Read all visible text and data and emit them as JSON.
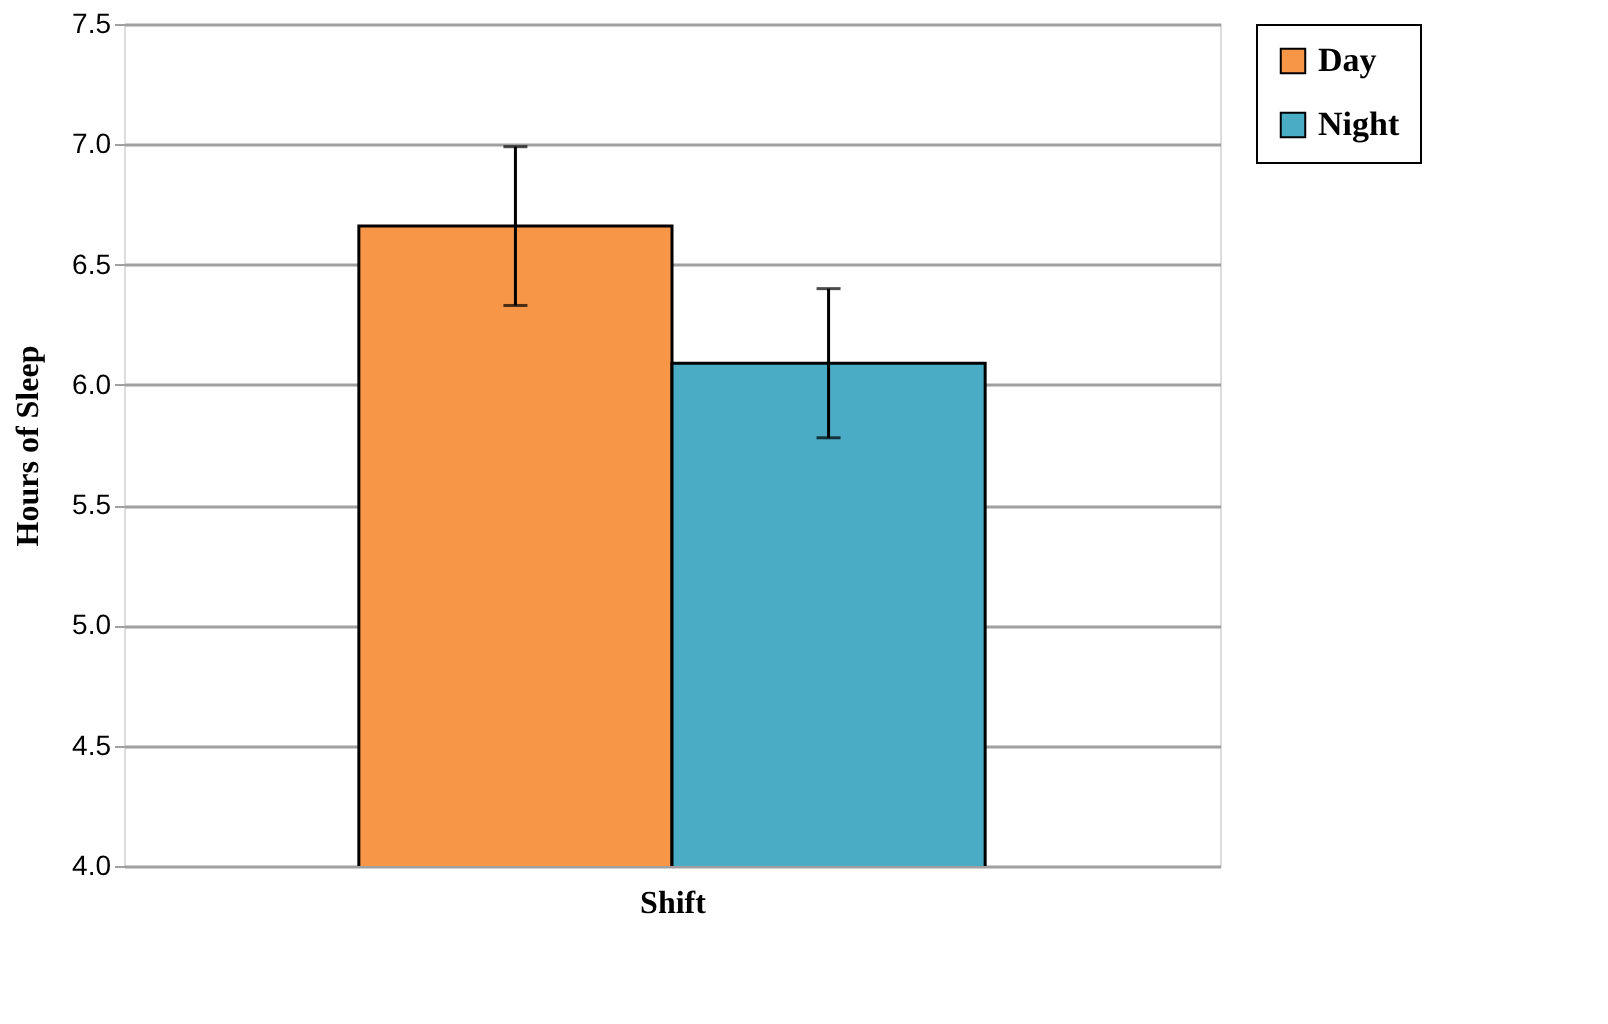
{
  "chart_data": {
    "type": "bar",
    "categories": [
      null
    ],
    "xlabel": "Shift",
    "ylabel": "Hours of Sleep",
    "series": [
      {
        "name": "Day",
        "color": "#f79646",
        "values": [
          6.66
        ],
        "errors": [
          0.33
        ]
      },
      {
        "name": "Night",
        "color": "#4bacc6",
        "values": [
          6.09
        ],
        "errors": [
          0.31
        ]
      }
    ],
    "ylim": [
      4.0,
      7.5
    ],
    "yticks": [
      {
        "value": 4.0,
        "label": "4.0"
      },
      {
        "value": 4.5,
        "label": "4.5"
      },
      {
        "value": 5.0,
        "label": "5.0"
      },
      {
        "value": 5.5,
        "label": "5.5"
      },
      {
        "value": 6.0,
        "label": "6.0"
      },
      {
        "value": 6.5,
        "label": "6.5"
      },
      {
        "value": 7.0,
        "label": "7.0"
      },
      {
        "value": 7.5,
        "label": "7.5"
      }
    ],
    "grid": "y",
    "legend": "right"
  }
}
